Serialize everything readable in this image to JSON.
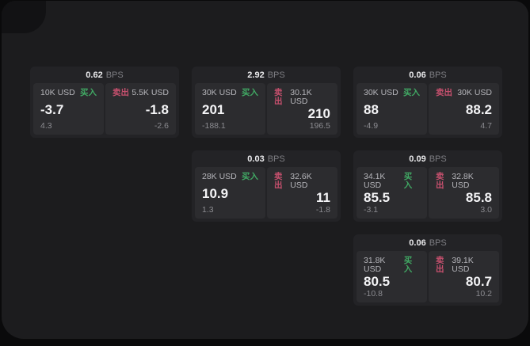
{
  "labels": {
    "bps_unit": "BPS",
    "buy": "买入",
    "sell": "卖出"
  },
  "colors": {
    "buy": "#41a964",
    "sell": "#c6506e"
  },
  "cards": [
    {
      "bps": "0.62",
      "unit": "BPS",
      "buy": {
        "amount": "10K USD",
        "side": "买入",
        "value": "-3.7",
        "delta": "4.3"
      },
      "sell": {
        "side": "卖出",
        "amount": "5.5K USD",
        "value": "-1.8",
        "delta": "-2.6"
      }
    },
    {
      "bps": "2.92",
      "unit": "BPS",
      "buy": {
        "amount": "30K USD",
        "side": "买入",
        "value": "201",
        "delta": "-188.1"
      },
      "sell": {
        "side": "卖出",
        "amount": "30.1K USD",
        "value": "210",
        "delta": "196.5"
      }
    },
    {
      "bps": "0.06",
      "unit": "BPS",
      "buy": {
        "amount": "30K USD",
        "side": "买入",
        "value": "88",
        "delta": "-4.9"
      },
      "sell": {
        "side": "卖出",
        "amount": "30K USD",
        "value": "88.2",
        "delta": "4.7"
      }
    },
    {
      "bps": "0.03",
      "unit": "BPS",
      "buy": {
        "amount": "28K USD",
        "side": "买入",
        "value": "10.9",
        "delta": "1.3"
      },
      "sell": {
        "side": "卖出",
        "amount": "32.6K USD",
        "value": "11",
        "delta": "-1.8"
      }
    },
    {
      "bps": "0.09",
      "unit": "BPS",
      "buy": {
        "amount": "34.1K USD",
        "side": "买入",
        "value": "85.5",
        "delta": "-3.1"
      },
      "sell": {
        "side": "卖出",
        "amount": "32.8K USD",
        "value": "85.8",
        "delta": "3.0"
      }
    },
    {
      "bps": "0.06",
      "unit": "BPS",
      "buy": {
        "amount": "31.8K USD",
        "side": "买入",
        "value": "80.5",
        "delta": "-10.8"
      },
      "sell": {
        "side": "卖出",
        "amount": "39.1K USD",
        "value": "80.7",
        "delta": "10.2"
      }
    }
  ]
}
